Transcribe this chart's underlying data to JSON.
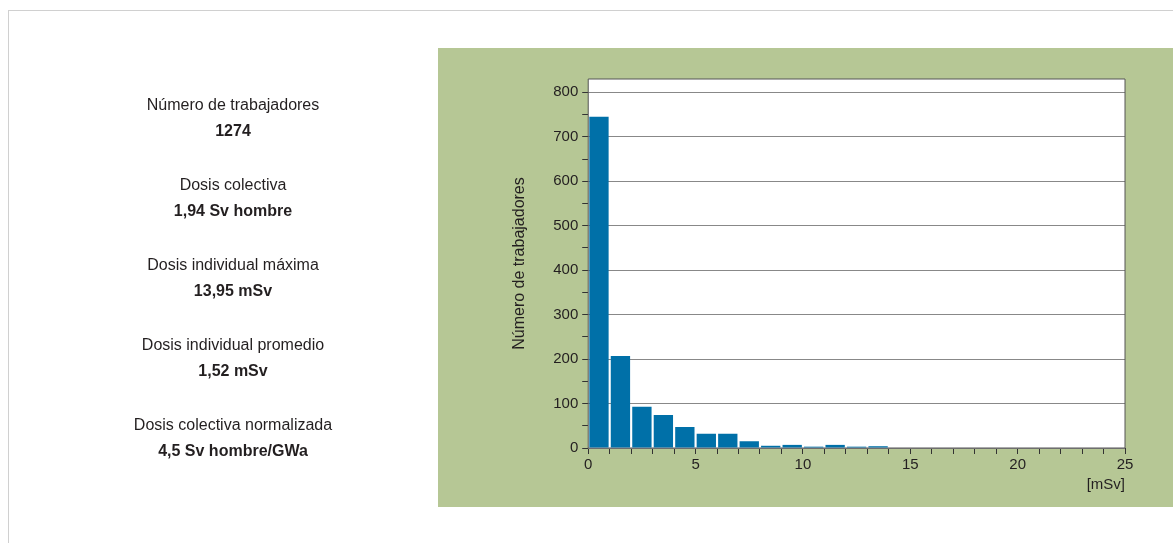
{
  "chart_data": {
    "type": "histogram",
    "xlabel": "[mSv]",
    "ylabel": "Número de trabajadores",
    "bins": [
      0,
      1,
      2,
      3,
      4,
      5,
      6,
      7,
      8,
      9,
      10,
      11,
      12,
      13,
      14
    ],
    "values": [
      745,
      207,
      93,
      74,
      47,
      32,
      32,
      15,
      5,
      7,
      3,
      7,
      3,
      4
    ],
    "color": "#0070a8",
    "xlim": [
      0,
      25
    ],
    "xticks": [
      0,
      {
        "value": 1,
        "label": null
      },
      {
        "value": 2,
        "label": null
      },
      {
        "value": 3,
        "label": null
      },
      {
        "value": 4,
        "label": null
      },
      5,
      {
        "value": 6,
        "label": null
      },
      {
        "value": 7,
        "label": null
      },
      {
        "value": 8,
        "label": null
      },
      {
        "value": 9,
        "label": null
      },
      10,
      {
        "value": 11,
        "label": null
      },
      {
        "value": 12,
        "label": null
      },
      {
        "value": 13,
        "label": null
      },
      {
        "value": 14,
        "label": null
      },
      15,
      {
        "value": 16,
        "label": null
      },
      {
        "value": 17,
        "label": null
      },
      {
        "value": 18,
        "label": null
      },
      {
        "value": 19,
        "label": null
      },
      20,
      {
        "value": 21,
        "label": null
      },
      {
        "value": 22,
        "label": null
      },
      {
        "value": 23,
        "label": null
      },
      {
        "value": 24,
        "label": null
      },
      25
    ],
    "ylim": [
      0,
      830
    ],
    "yticks": [
      0,
      {
        "value": 50,
        "label": null
      },
      100,
      {
        "value": 150,
        "label": null
      },
      200,
      {
        "value": 250,
        "label": null
      },
      300,
      {
        "value": 350,
        "label": null
      },
      400,
      {
        "value": 450,
        "label": null
      },
      500,
      {
        "value": 550,
        "label": null
      },
      600,
      {
        "value": 650,
        "label": null
      },
      700,
      {
        "value": 750,
        "label": null
      },
      800
    ],
    "grid": "y",
    "legend": false,
    "annotations": [
      "Número de trabajadores",
      "1274",
      "Dosis colectiva",
      "1,94 Sv hombre",
      "Dosis individual máxima",
      "13,95 mSv",
      "Dosis individual promedio",
      "1,52 mSv",
      "Dosis colectiva normalizada",
      "4,5 Sv hombre/GWa"
    ]
  }
}
